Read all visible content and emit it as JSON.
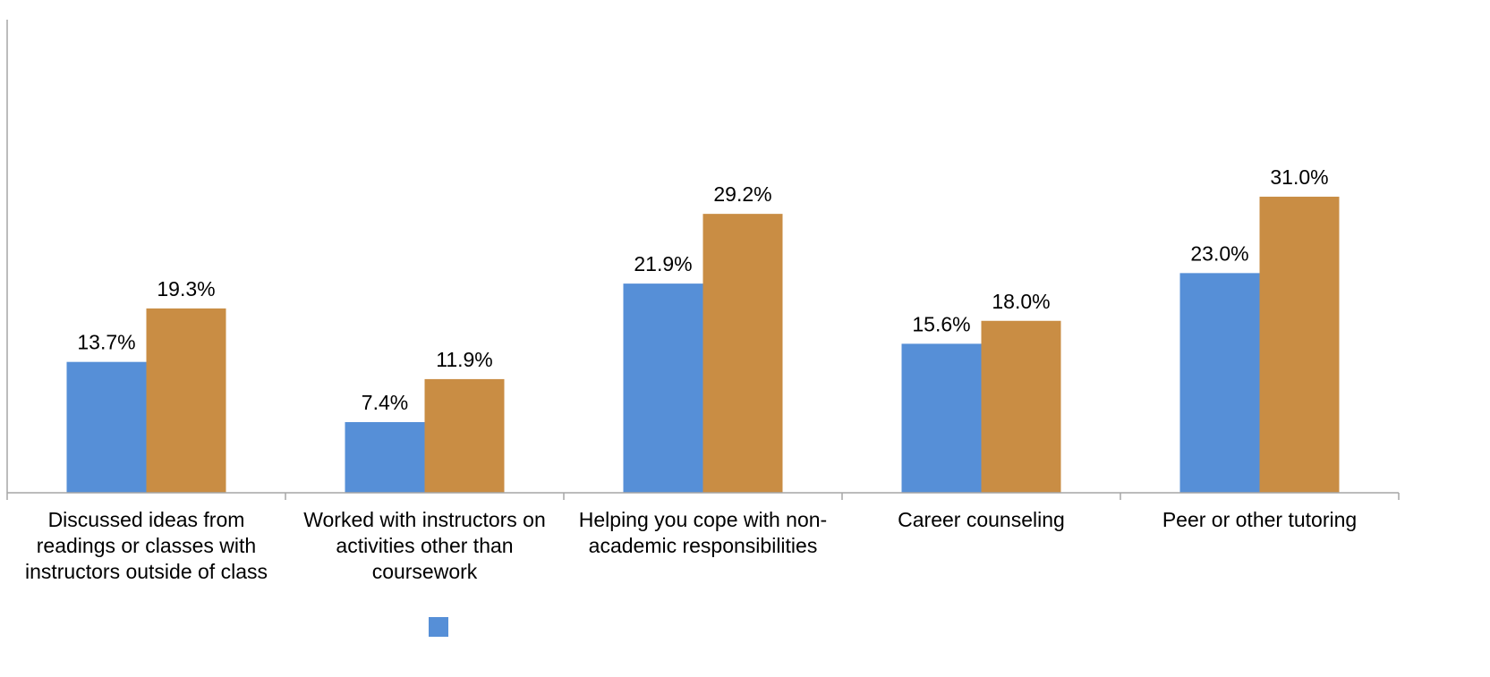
{
  "chart_data": {
    "type": "bar",
    "title": "",
    "xlabel": "",
    "ylabel": "",
    "ylim": [
      0,
      40
    ],
    "grid": false,
    "legend": "bottom",
    "categories": [
      [
        "Discussed ideas from",
        "readings or classes with",
        "instructors outside of class"
      ],
      [
        "Worked with instructors on",
        "activities other than",
        "coursework"
      ],
      [
        "Helping you cope with non-",
        "academic responsibilities"
      ],
      [
        "Career counseling"
      ],
      [
        "Peer or other tutoring"
      ]
    ],
    "series": [
      {
        "color": "#568fd7",
        "values": [
          13.7,
          7.4,
          21.9,
          15.6,
          23.0
        ],
        "labels": [
          "13.7%",
          "7.4%",
          "21.9%",
          "15.6%",
          "23.0%"
        ]
      },
      {
        "color": "#c98d44",
        "values": [
          19.3,
          11.9,
          29.2,
          18.0,
          31.0
        ],
        "labels": [
          "19.3%",
          "11.9%",
          "29.2%",
          "18.0%",
          "31.0%"
        ]
      }
    ],
    "axis_color": "#a6a6a6"
  }
}
